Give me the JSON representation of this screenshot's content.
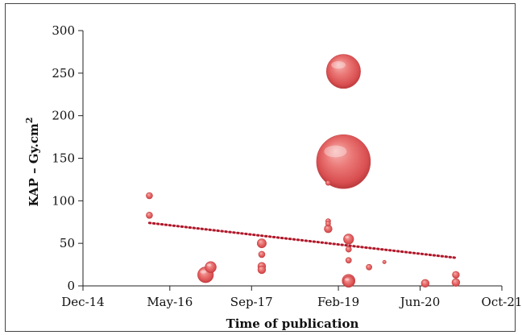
{
  "chart_data": {
    "type": "scatter",
    "xlabel": "Time of publication",
    "ylabel": "KAP – Gy.cm",
    "ylabel_superscript": "2",
    "x_ticks": [
      "Dec-14",
      "May-16",
      "Sep-17",
      "Feb-19",
      "Jun-20",
      "Oct-21"
    ],
    "x_range": [
      "Dec-14",
      "Oct-21"
    ],
    "y_ticks": [
      "0",
      "50",
      "100",
      "150",
      "200",
      "250",
      "300"
    ],
    "ylim": [
      0,
      300
    ],
    "grid": false,
    "bubble_color": "#e0595b",
    "trendline": {
      "style": "dotted",
      "color": "#b0182a",
      "start": {
        "x": "Jan-16",
        "y": 74
      },
      "end": {
        "x": "Jan-21",
        "y": 33
      }
    },
    "points": [
      {
        "x": "Jan-16",
        "y": 106,
        "size": 1
      },
      {
        "x": "Jan-16",
        "y": 83,
        "size": 1
      },
      {
        "x": "Dec-16",
        "y": 13,
        "size": 6
      },
      {
        "x": "Jan-17",
        "y": 22,
        "size": 3
      },
      {
        "x": "Nov-17",
        "y": 50,
        "size": 2
      },
      {
        "x": "Nov-17",
        "y": 37,
        "size": 1
      },
      {
        "x": "Nov-17",
        "y": 23,
        "size": 1.5
      },
      {
        "x": "Nov-17",
        "y": 19,
        "size": 1.5
      },
      {
        "x": "Dec-18",
        "y": 121,
        "size": 0.6
      },
      {
        "x": "Dec-18",
        "y": 76,
        "size": 0.6
      },
      {
        "x": "Dec-18",
        "y": 73,
        "size": 0.6
      },
      {
        "x": "Dec-18",
        "y": 67,
        "size": 1.5
      },
      {
        "x": "Mar-19",
        "y": 252,
        "size": 28
      },
      {
        "x": "Mar-19",
        "y": 146,
        "size": 70
      },
      {
        "x": "Apr-19",
        "y": 55,
        "size": 2.5
      },
      {
        "x": "Apr-19",
        "y": 43,
        "size": 0.8
      },
      {
        "x": "Apr-19",
        "y": 30,
        "size": 0.8
      },
      {
        "x": "Apr-19",
        "y": 6,
        "size": 4
      },
      {
        "x": "Apr-19",
        "y": 5,
        "size": 3
      },
      {
        "x": "Aug-19",
        "y": 22,
        "size": 0.8
      },
      {
        "x": "Nov-19",
        "y": 28,
        "size": 0.3
      },
      {
        "x": "Jul-20",
        "y": 3,
        "size": 1.5
      },
      {
        "x": "Jan-21",
        "y": 13,
        "size": 1.2
      },
      {
        "x": "Jan-21",
        "y": 4,
        "size": 1.5
      }
    ]
  }
}
